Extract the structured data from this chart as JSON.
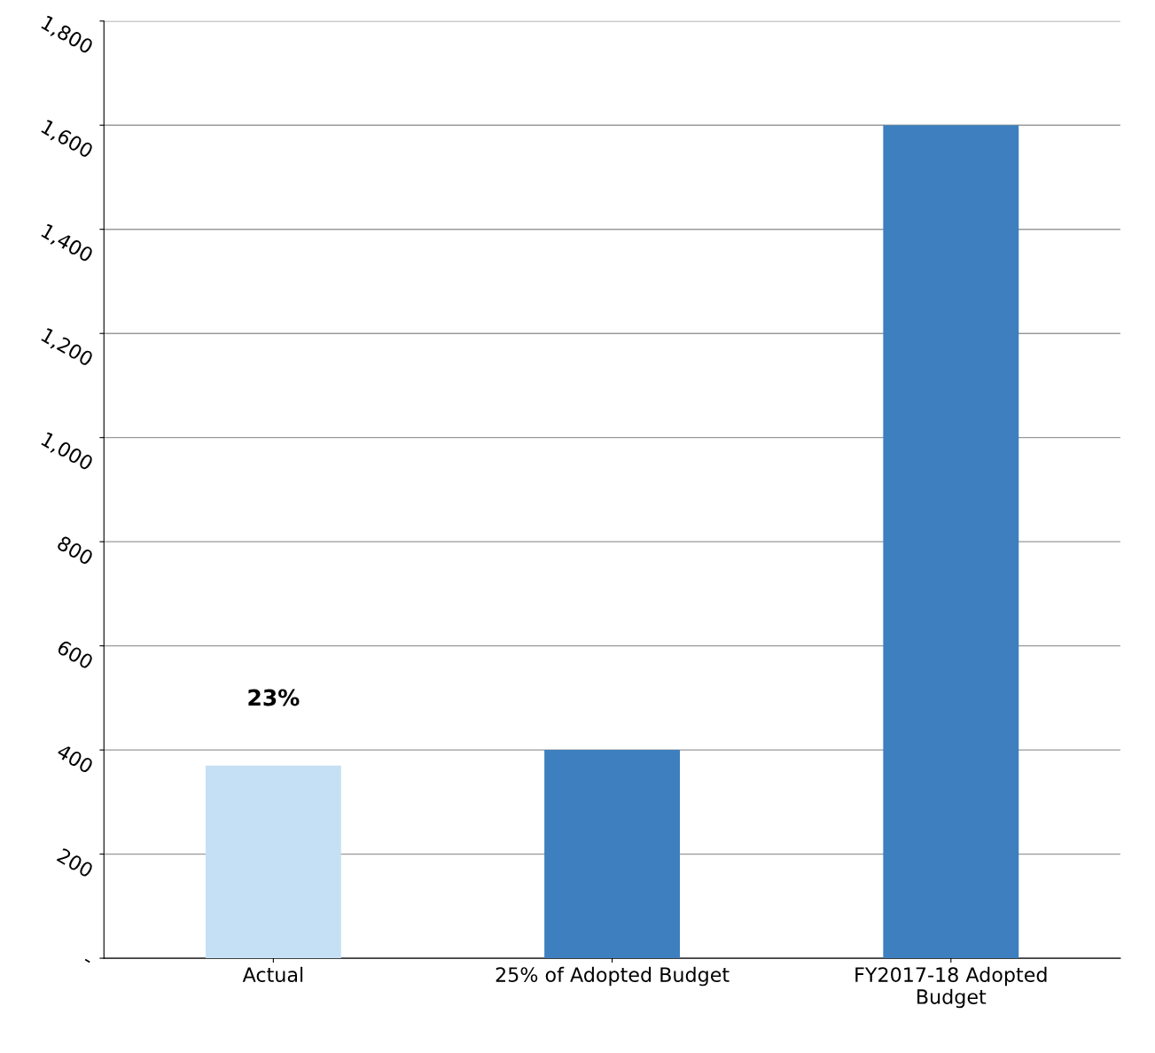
{
  "chart_data": {
    "type": "bar",
    "categories": [
      "Actual",
      "25% of Adopted Budget",
      "FY2017-18 Adopted\nBudget"
    ],
    "values": [
      370,
      400,
      1600
    ],
    "colors": [
      "#c5e0f5",
      "#3d7fbf",
      "#3d7fbf"
    ],
    "ylim": [
      0,
      1800
    ],
    "yticks": [
      {
        "value": 0,
        "label": "-"
      },
      {
        "value": 200,
        "label": "200"
      },
      {
        "value": 400,
        "label": "400"
      },
      {
        "value": 600,
        "label": "600"
      },
      {
        "value": 800,
        "label": "800"
      },
      {
        "value": 1000,
        "label": "1,000"
      },
      {
        "value": 1200,
        "label": "1,200"
      },
      {
        "value": 1400,
        "label": "1,400"
      },
      {
        "value": 1600,
        "label": "1,600"
      },
      {
        "value": 1800,
        "label": "1,800"
      }
    ],
    "grid": "y",
    "annotations": [
      {
        "text": "23%",
        "x": "Actual",
        "y": 370
      }
    ]
  }
}
